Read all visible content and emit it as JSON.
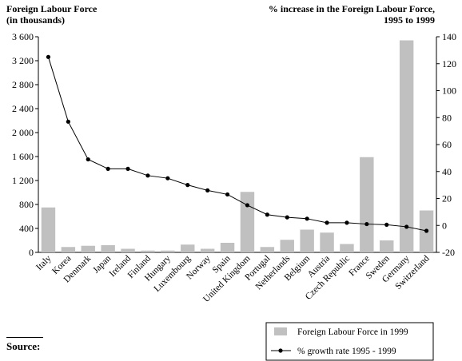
{
  "chart_data": {
    "type": "bar-line",
    "left_title_line1": "Foreign Labour Force",
    "left_title_line2": "(in thousands)",
    "right_title_line1": "% increase in the Foreign Labour Force,",
    "right_title_line2": "1995 to 1999",
    "categories": [
      "Italy",
      "Korea",
      "Denmark",
      "Japan",
      "Ireland",
      "Finland",
      "Hungary",
      "Luxembourg",
      "Norway",
      "Spain",
      "United Kingdom",
      "Portugal",
      "Netherlands",
      "Belgium",
      "Austria",
      "Czech Republic",
      "France",
      "Sweden",
      "Germany",
      "Switzerland"
    ],
    "series": [
      {
        "name": "Foreign Labour Force in 1999",
        "kind": "bar",
        "axis": "left",
        "values": [
          750,
          90,
          110,
          120,
          60,
          30,
          30,
          130,
          60,
          160,
          1010,
          90,
          210,
          380,
          330,
          140,
          1590,
          200,
          3540,
          700
        ]
      },
      {
        "name": "% growth rate 1995 - 1999",
        "kind": "line",
        "axis": "right",
        "values": [
          125,
          77,
          49,
          42,
          42,
          37,
          35,
          30,
          26,
          23,
          15,
          8,
          6,
          5,
          2,
          2,
          1,
          0.5,
          -1,
          -4
        ]
      }
    ],
    "left_axis": {
      "min": 0,
      "max": 3600,
      "ticks": [
        "0",
        "400",
        "800",
        "1 200",
        "1 600",
        "2 000",
        "2 400",
        "2 800",
        "3 200",
        "3 600"
      ]
    },
    "right_axis": {
      "min": -20,
      "max": 140,
      "ticks": [
        "-20",
        "0",
        "20",
        "40",
        "60",
        "80",
        "100",
        "120",
        "140"
      ]
    },
    "colors": {
      "bar": "#c0c0c0",
      "line": "#000000"
    }
  },
  "footer": {
    "source_label": "Source:"
  }
}
